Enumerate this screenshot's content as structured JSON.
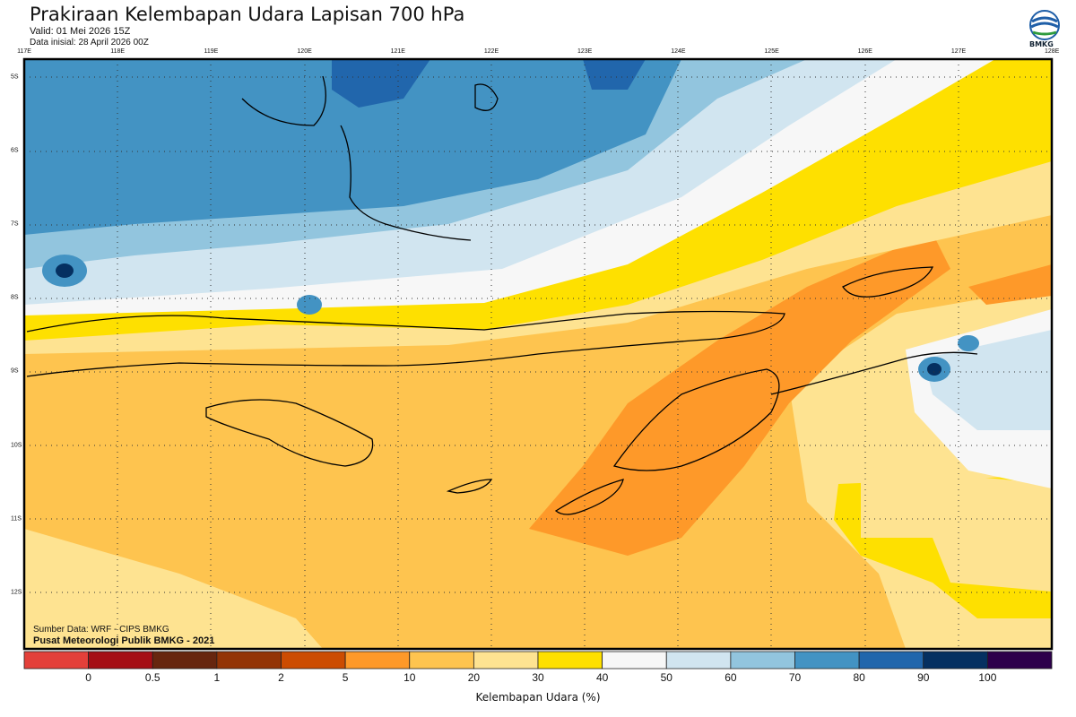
{
  "header": {
    "title": "Prakiraan Kelembapan Udara Lapisan 700 hPa",
    "valid": "Valid: 01 Mei 2026 15Z",
    "data_inisial": "Data inisial: 28 April 2026 00Z",
    "logo_text": "BMKG"
  },
  "map": {
    "lon_ticks": [
      "117E",
      "118E",
      "119E",
      "120E",
      "121E",
      "122E",
      "123E",
      "124E",
      "125E",
      "126E",
      "127E",
      "128E"
    ],
    "lat_ticks": [
      "5S",
      "6S",
      "7S",
      "8S",
      "9S",
      "10S",
      "11S",
      "12S"
    ],
    "source": "Sumber Data: WRF - CIPS BMKG",
    "credit": "Pusat Meteorologi Publik BMKG - 2021"
  },
  "colorbar": {
    "title": "Kelembapan Udara (%)",
    "labels": [
      "0",
      "0.5",
      "1",
      "2",
      "5",
      "10",
      "20",
      "30",
      "40",
      "50",
      "60",
      "70",
      "80",
      "90",
      "100"
    ],
    "colors": [
      "#e3403a",
      "#a50f15",
      "#67260f",
      "#933406",
      "#cc4c02",
      "#fe9929",
      "#fec44f",
      "#fee391",
      "#fee000",
      "#f7f7f7",
      "#d1e5f0",
      "#92c5de",
      "#4393c3",
      "#2166ac",
      "#053061",
      "#2d004b"
    ]
  }
}
